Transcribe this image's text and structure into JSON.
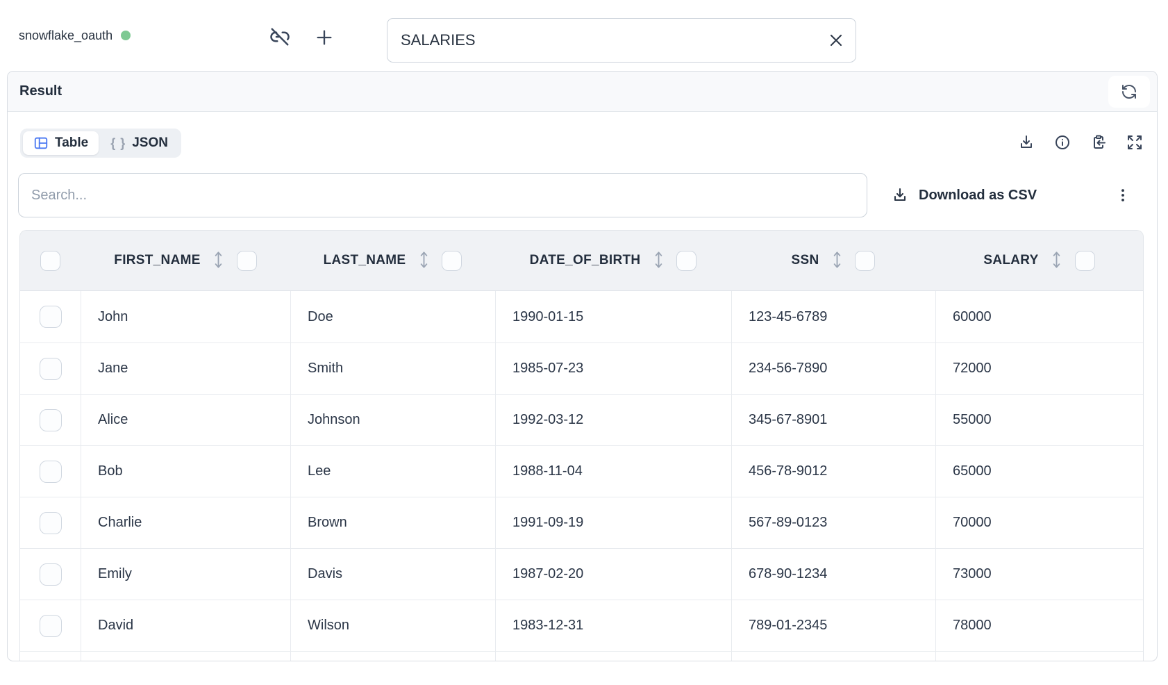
{
  "connection": {
    "name": "snowflake_oauth",
    "status_color": "#7ec993"
  },
  "query_input": {
    "value": "SALARIES"
  },
  "result_panel": {
    "title": "Result"
  },
  "view_tabs": {
    "table_label": "Table",
    "json_label": "JSON",
    "json_icon_text": "{ }"
  },
  "search": {
    "placeholder": "Search..."
  },
  "actions": {
    "download_csv_label": "Download as CSV"
  },
  "icons": [
    "link-off-icon",
    "plus-icon",
    "close-icon",
    "refresh-icon",
    "table-icon",
    "braces-icon",
    "download-icon",
    "info-icon",
    "clipboard-paste-icon",
    "expand-icon",
    "kebab-icon",
    "sort-icon",
    "checkbox"
  ],
  "colors": {
    "accent_blue": "#4b79f2",
    "status_green": "#7ec993",
    "header_bg": "#f0f2f5",
    "result_bar_bg": "#f8f9fb",
    "border": "#e8ebef",
    "text_dark": "#232e3d"
  },
  "table": {
    "columns": [
      "FIRST_NAME",
      "LAST_NAME",
      "DATE_OF_BIRTH",
      "SSN",
      "SALARY"
    ],
    "rows": [
      [
        "John",
        "Doe",
        "1990-01-15",
        "123-45-6789",
        "60000"
      ],
      [
        "Jane",
        "Smith",
        "1985-07-23",
        "234-56-7890",
        "72000"
      ],
      [
        "Alice",
        "Johnson",
        "1992-03-12",
        "345-67-8901",
        "55000"
      ],
      [
        "Bob",
        "Lee",
        "1988-11-04",
        "456-78-9012",
        "65000"
      ],
      [
        "Charlie",
        "Brown",
        "1991-09-19",
        "567-89-0123",
        "70000"
      ],
      [
        "Emily",
        "Davis",
        "1987-02-20",
        "678-90-1234",
        "73000"
      ],
      [
        "David",
        "Wilson",
        "1983-12-31",
        "789-01-2345",
        "78000"
      ]
    ]
  }
}
